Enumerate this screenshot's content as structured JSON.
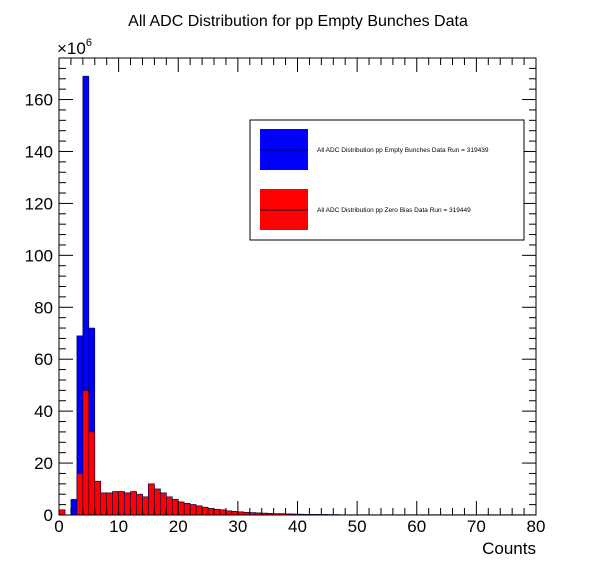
{
  "chart_data": {
    "type": "bar",
    "title": "All ADC Distribution for pp Empty Bunches Data",
    "xlabel": "Counts",
    "ylabel": "",
    "y_exponent_label": "×10",
    "y_exponent_power": "6",
    "xlim": [
      0,
      80
    ],
    "ylim": [
      0,
      176
    ],
    "x_ticks": [
      0,
      10,
      20,
      30,
      40,
      50,
      60,
      70,
      80
    ],
    "y_ticks": [
      0,
      20,
      40,
      60,
      80,
      100,
      120,
      140,
      160
    ],
    "grid": false,
    "legend_position": "top-right",
    "bin_width": 1,
    "x": [
      0,
      1,
      2,
      3,
      4,
      5,
      6,
      7,
      8,
      9,
      10,
      11,
      12,
      13,
      14,
      15,
      16,
      17,
      18,
      19,
      20,
      21,
      22,
      23,
      24,
      25,
      26,
      27,
      28,
      29,
      30,
      31,
      32,
      33,
      34,
      35,
      36,
      37,
      38,
      39,
      40,
      41,
      42,
      43,
      44,
      45,
      46,
      47,
      48,
      49,
      50,
      51,
      52,
      53,
      54,
      55,
      56,
      57,
      58,
      59,
      60,
      61,
      62,
      63,
      64,
      65,
      66,
      67,
      68,
      69,
      70,
      71,
      72,
      73,
      74,
      75,
      76,
      77,
      78,
      79
    ],
    "series": [
      {
        "name": "All ADC Distribution pp Empty Bunches Data Run = 319439",
        "color": "#0000ff",
        "values": [
          2,
          0,
          6,
          69,
          169,
          72,
          13,
          8.5,
          8.5,
          9,
          9,
          8.5,
          9,
          8,
          7,
          12,
          10,
          8.5,
          7,
          6,
          5,
          4.5,
          4,
          3.5,
          3,
          2.5,
          2.2,
          2,
          1.6,
          1.4,
          1.2,
          1,
          0.9,
          0.8,
          0.7,
          0.6,
          0.5,
          0.5,
          0.4,
          0.35,
          0.3,
          0.25,
          0.2,
          0.2,
          0.2,
          0.15,
          0.15,
          0.1,
          0.1,
          0.1,
          0.1,
          0.1,
          0.1,
          0.1,
          0.1,
          0.1,
          0.1,
          0.1,
          0.1,
          0.1,
          0.1,
          0.1,
          0.1,
          0.1,
          0.1,
          0.1,
          0.1,
          0.1,
          0.1,
          0.1,
          0.1,
          0.1,
          0.1,
          0.1,
          0.1,
          0.1,
          0.1,
          0.1,
          0.1,
          0.1
        ]
      },
      {
        "name": "All ADC Distribution pp Zero Bias Data Run = 319449",
        "color": "#ff0000",
        "values": [
          2,
          0,
          0,
          16,
          48,
          32,
          13,
          8.5,
          8.5,
          9,
          9,
          8.5,
          9,
          8,
          7,
          12,
          10,
          8.5,
          7,
          6,
          5,
          4.5,
          4,
          3.5,
          3,
          2.5,
          2.2,
          2,
          1.6,
          1.4,
          1.2,
          1,
          0.9,
          0.8,
          0.7,
          0.6,
          0.5,
          0.5,
          0.4,
          0.35,
          0.3,
          0.25,
          0.2,
          0.2,
          0.2,
          0.15,
          0.15,
          0.1,
          0.1,
          0.1,
          0.1,
          0.1,
          0.1,
          0.1,
          0.1,
          0.1,
          0.1,
          0.1,
          0.1,
          0.1,
          0.1,
          0.1,
          0.1,
          0.1,
          0.1,
          0.1,
          0.1,
          0.1,
          0.1,
          0.1,
          0.1,
          0.1,
          0.1,
          0.1,
          0.1,
          0.1,
          0.1,
          0.1,
          0.1,
          0.1
        ]
      }
    ]
  }
}
